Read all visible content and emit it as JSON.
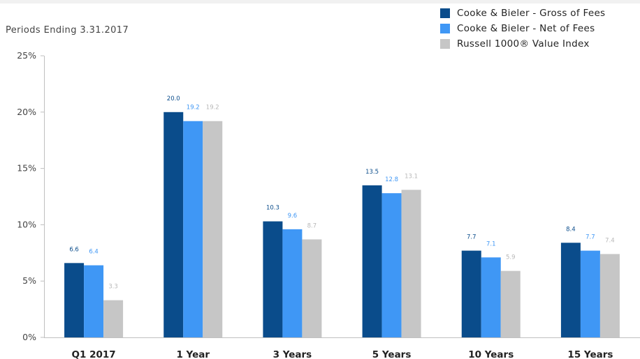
{
  "subtitle": "Periods Ending 3.31.2017",
  "legend": [
    {
      "label": "Cooke & Bieler - Gross of Fees",
      "color": "#0a4c8b"
    },
    {
      "label": "Cooke & Bieler - Net of Fees",
      "color": "#3f97f5"
    },
    {
      "label": "Russell 1000® Value Index",
      "color": "#c6c6c6"
    }
  ],
  "chart_data": {
    "type": "bar",
    "title": "",
    "subtitle": "Periods Ending 3.31.2017",
    "xlabel": "",
    "ylabel": "",
    "ylim": [
      0,
      25
    ],
    "yticks": [
      0,
      5,
      10,
      15,
      20,
      25
    ],
    "ytick_labels": [
      "0%",
      "5%",
      "10%",
      "15%",
      "20%",
      "25%"
    ],
    "grid": false,
    "legend_position": "top-right",
    "categories": [
      "Q1 2017",
      "1 Year",
      "3 Years",
      "5 Years",
      "10 Years",
      "15 Years"
    ],
    "series": [
      {
        "name": "Cooke & Bieler - Gross of Fees",
        "color": "#0a4c8b",
        "label_color": "#0a4c8b",
        "values": [
          6.6,
          20.0,
          10.3,
          13.5,
          7.7,
          8.4
        ],
        "labels": [
          "6.6",
          "20.0",
          "10.3",
          "13.5",
          "7.7",
          "8.4"
        ]
      },
      {
        "name": "Cooke & Bieler - Net of Fees",
        "color": "#3f97f5",
        "label_color": "#3f97f5",
        "values": [
          6.4,
          19.2,
          9.6,
          12.8,
          7.1,
          7.7
        ],
        "labels": [
          "6.4",
          "19.2",
          "9.6",
          "12.8",
          "7.1",
          "7.7"
        ]
      },
      {
        "name": "Russell 1000® Value Index",
        "color": "#c6c6c6",
        "label_color": "#b8b8b8",
        "values": [
          3.3,
          19.2,
          8.7,
          13.1,
          5.9,
          7.4
        ],
        "labels": [
          "3.3",
          "19.2",
          "8.7",
          "13.1",
          "5.9",
          "7.4"
        ]
      }
    ]
  }
}
